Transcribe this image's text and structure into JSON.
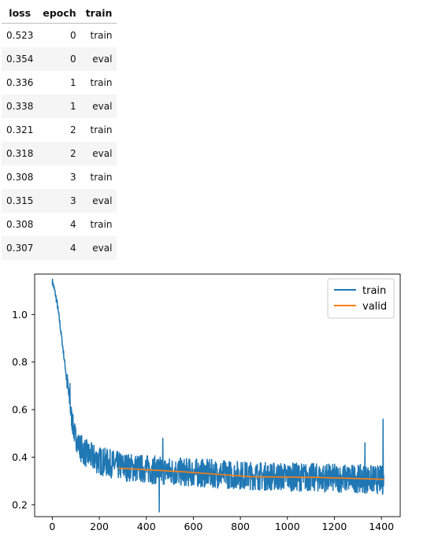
{
  "table": {
    "columns": [
      "loss",
      "epoch",
      "train"
    ],
    "rows": [
      [
        "0.523",
        "0",
        "train"
      ],
      [
        "0.354",
        "0",
        "eval"
      ],
      [
        "0.336",
        "1",
        "train"
      ],
      [
        "0.338",
        "1",
        "eval"
      ],
      [
        "0.321",
        "2",
        "train"
      ],
      [
        "0.318",
        "2",
        "eval"
      ],
      [
        "0.308",
        "3",
        "train"
      ],
      [
        "0.315",
        "3",
        "eval"
      ],
      [
        "0.308",
        "4",
        "train"
      ],
      [
        "0.307",
        "4",
        "eval"
      ]
    ]
  },
  "chart_data": {
    "type": "line",
    "title": "",
    "xlabel": "",
    "ylabel": "",
    "xlim": [
      -75,
      1480
    ],
    "ylim": [
      0.15,
      1.17
    ],
    "xticks": [
      0,
      200,
      400,
      600,
      800,
      1000,
      1200,
      1400
    ],
    "yticks": [
      0.2,
      0.4,
      0.6,
      0.8,
      1.0
    ],
    "ytick_labels": [
      "0.2",
      "0.4",
      "0.6",
      "0.8",
      "1.0"
    ],
    "grid": false,
    "legend_position": "top-right",
    "series": [
      {
        "name": "train",
        "color": "#1f77b4",
        "points": [
          [
            0,
            1.14
          ],
          [
            10,
            1.1
          ],
          [
            20,
            1.05
          ],
          [
            30,
            0.98
          ],
          [
            40,
            0.9
          ],
          [
            50,
            0.82
          ],
          [
            60,
            0.74
          ],
          [
            70,
            0.66
          ],
          [
            80,
            0.58
          ],
          [
            90,
            0.52
          ],
          [
            100,
            0.48
          ],
          [
            120,
            0.44
          ],
          [
            150,
            0.41
          ],
          [
            200,
            0.385
          ],
          [
            300,
            0.36
          ],
          [
            400,
            0.35
          ],
          [
            500,
            0.34
          ],
          [
            600,
            0.335
          ],
          [
            700,
            0.33
          ],
          [
            800,
            0.325
          ],
          [
            900,
            0.32
          ],
          [
            1000,
            0.318
          ],
          [
            1100,
            0.315
          ],
          [
            1200,
            0.312
          ],
          [
            1300,
            0.31
          ],
          [
            1400,
            0.305
          ],
          [
            1410,
            0.3
          ]
        ],
        "noise": 0.06,
        "spikes": [
          [
            1407,
            0.56
          ],
          [
            455,
            0.17
          ],
          [
            75,
            0.71
          ],
          [
            470,
            0.48
          ],
          [
            1330,
            0.46
          ]
        ]
      },
      {
        "name": "valid",
        "color": "#ff7f0e",
        "points": [
          [
            282,
            0.354
          ],
          [
            564,
            0.338
          ],
          [
            846,
            0.318
          ],
          [
            1128,
            0.315
          ],
          [
            1410,
            0.307
          ]
        ]
      }
    ]
  }
}
